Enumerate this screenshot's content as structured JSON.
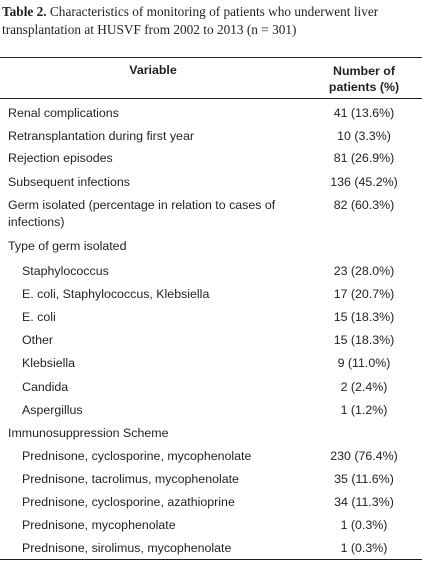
{
  "caption": {
    "label": "Table 2.",
    "text": "Characteristics of monitoring of patients who underwent liver transplantation at HUSVF from 2002 to 2013 (n = 301)"
  },
  "header": {
    "variable": "Variable",
    "number_line1": "Number of",
    "number_line2": "patients (%)"
  },
  "rows": [
    {
      "variable": "Renal complications",
      "value": "41 (13.6%)"
    },
    {
      "variable": "Retransplantation during first year",
      "value": "10 (3.3%)"
    },
    {
      "variable": "Rejection episodes",
      "value": "81 (26.9%)"
    },
    {
      "variable": "Subsequent infections",
      "value": "136 (45.2%)"
    },
    {
      "variable_line1": "Germ isolated (percentage in relation to cases of",
      "variable_line2": "infections)",
      "value": "82 (60.3%)"
    },
    {
      "variable": "Type of germ isolated",
      "value": ""
    },
    {
      "variable": "Staphylococcus",
      "value": "23 (28.0%)"
    },
    {
      "variable": "E. coli, Staphylococcus, Klebsiella",
      "value": "17 (20.7%)"
    },
    {
      "variable": "E. coli",
      "value": "15 (18.3%)"
    },
    {
      "variable": "Other",
      "value": "15 (18.3%)"
    },
    {
      "variable": "Klebsiella",
      "value": "9 (11.0%)"
    },
    {
      "variable": "Candida",
      "value": "2 (2.4%)"
    },
    {
      "variable": "Aspergillus",
      "value": "1 (1.2%)"
    },
    {
      "variable": "Immunosuppression Scheme",
      "value": ""
    },
    {
      "variable": "Prednisone, cyclosporine, mycophenolate",
      "value": "230 (76.4%)"
    },
    {
      "variable": "Prednisone, tacrolimus, mycophenolate",
      "value": "35 (11.6%)"
    },
    {
      "variable": "Prednisone, cyclosporine, azathioprine",
      "value": "34 (11.3%)"
    },
    {
      "variable": "Prednisone, mycophenolate",
      "value": "1 (0.3%)"
    },
    {
      "variable": "Prednisone, sirolimus, mycophenolate",
      "value": "1 (0.3%)"
    }
  ]
}
